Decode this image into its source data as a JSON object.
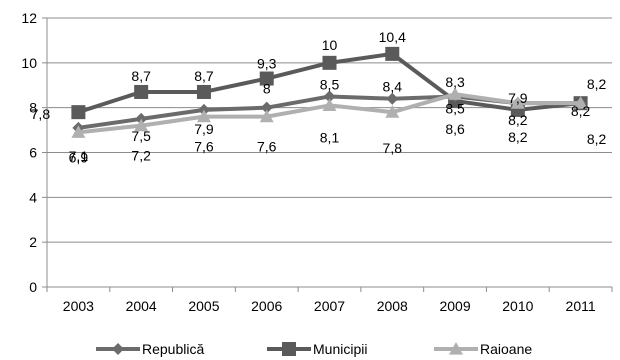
{
  "chart_data": {
    "type": "line",
    "categories": [
      "2003",
      "2004",
      "2005",
      "2006",
      "2007",
      "2008",
      "2009",
      "2010",
      "2011"
    ],
    "ylim": [
      0,
      12
    ],
    "yticks": [
      0,
      2,
      4,
      6,
      8,
      10,
      12
    ],
    "grid": true,
    "legend_position": "bottom",
    "series": [
      {
        "name": "Republică",
        "marker": "diamond",
        "color": "#6b6b6b",
        "values": [
          7.1,
          7.5,
          7.9,
          8.0,
          8.5,
          8.4,
          8.5,
          8.2,
          8.2
        ],
        "labels": [
          "7,1",
          "7,5",
          "7,9",
          "8",
          "8,5",
          "8,4",
          "8,5",
          "8,2",
          "8,2"
        ]
      },
      {
        "name": "Municipii",
        "marker": "square",
        "color": "#5a5a5a",
        "values": [
          7.8,
          8.7,
          8.7,
          9.3,
          10.0,
          10.4,
          8.3,
          7.9,
          8.2
        ],
        "labels": [
          "7,8",
          "8,7",
          "8,7",
          "9,3",
          "10",
          "10,4",
          "8,3",
          "7,9",
          "8,2"
        ]
      },
      {
        "name": "Raioane",
        "marker": "triangle",
        "color": "#b0b0b0",
        "values": [
          6.9,
          7.2,
          7.6,
          7.6,
          8.1,
          7.8,
          8.6,
          8.2,
          8.2
        ],
        "labels": [
          "6,9",
          "7,2",
          "7,6",
          "7,6",
          "8,1",
          "7,8",
          "8,6",
          "8,2",
          "8,2"
        ]
      }
    ]
  }
}
